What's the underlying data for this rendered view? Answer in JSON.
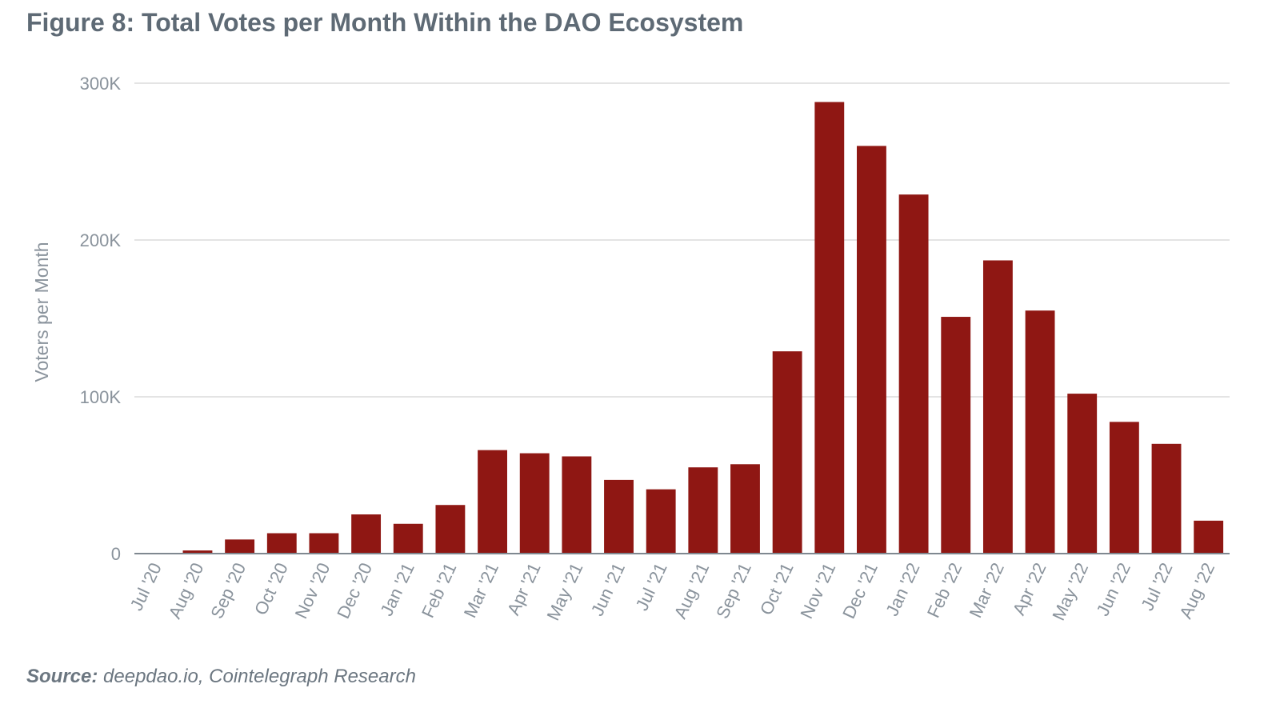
{
  "chart_data": {
    "type": "bar",
    "title": "Figure 8: Total Votes per Month Within the DAO Ecosystem",
    "xlabel": "",
    "ylabel": "Voters per Month",
    "ylim": [
      0,
      300000
    ],
    "yticks": [
      0,
      100000,
      200000,
      300000
    ],
    "ytick_labels": [
      "0",
      "100K",
      "200K",
      "300K"
    ],
    "grid": true,
    "legend": "none",
    "bar_color": "#8f1713",
    "categories": [
      "Jul '20",
      "Aug '20",
      "Sep '20",
      "Oct '20",
      "Nov '20",
      "Dec '20",
      "Jan '21",
      "Feb '21",
      "Mar '21",
      "Apr '21",
      "May '21",
      "Jun '21",
      "Jul '21",
      "Aug '21",
      "Sep '21",
      "Oct '21",
      "Nov '21",
      "Dec '21",
      "Jan '22",
      "Feb '22",
      "Mar '22",
      "Apr '22",
      "May '22",
      "Jun '22",
      "Jul '22",
      "Aug '22"
    ],
    "values": [
      0,
      2000,
      9000,
      13000,
      13000,
      25000,
      19000,
      31000,
      66000,
      64000,
      62000,
      47000,
      41000,
      55000,
      57000,
      129000,
      288000,
      260000,
      229000,
      151000,
      187000,
      155000,
      102000,
      84000,
      70000,
      21000
    ]
  },
  "source": {
    "label": "Source:",
    "text": "deepdao.io, Cointelegraph Research"
  }
}
